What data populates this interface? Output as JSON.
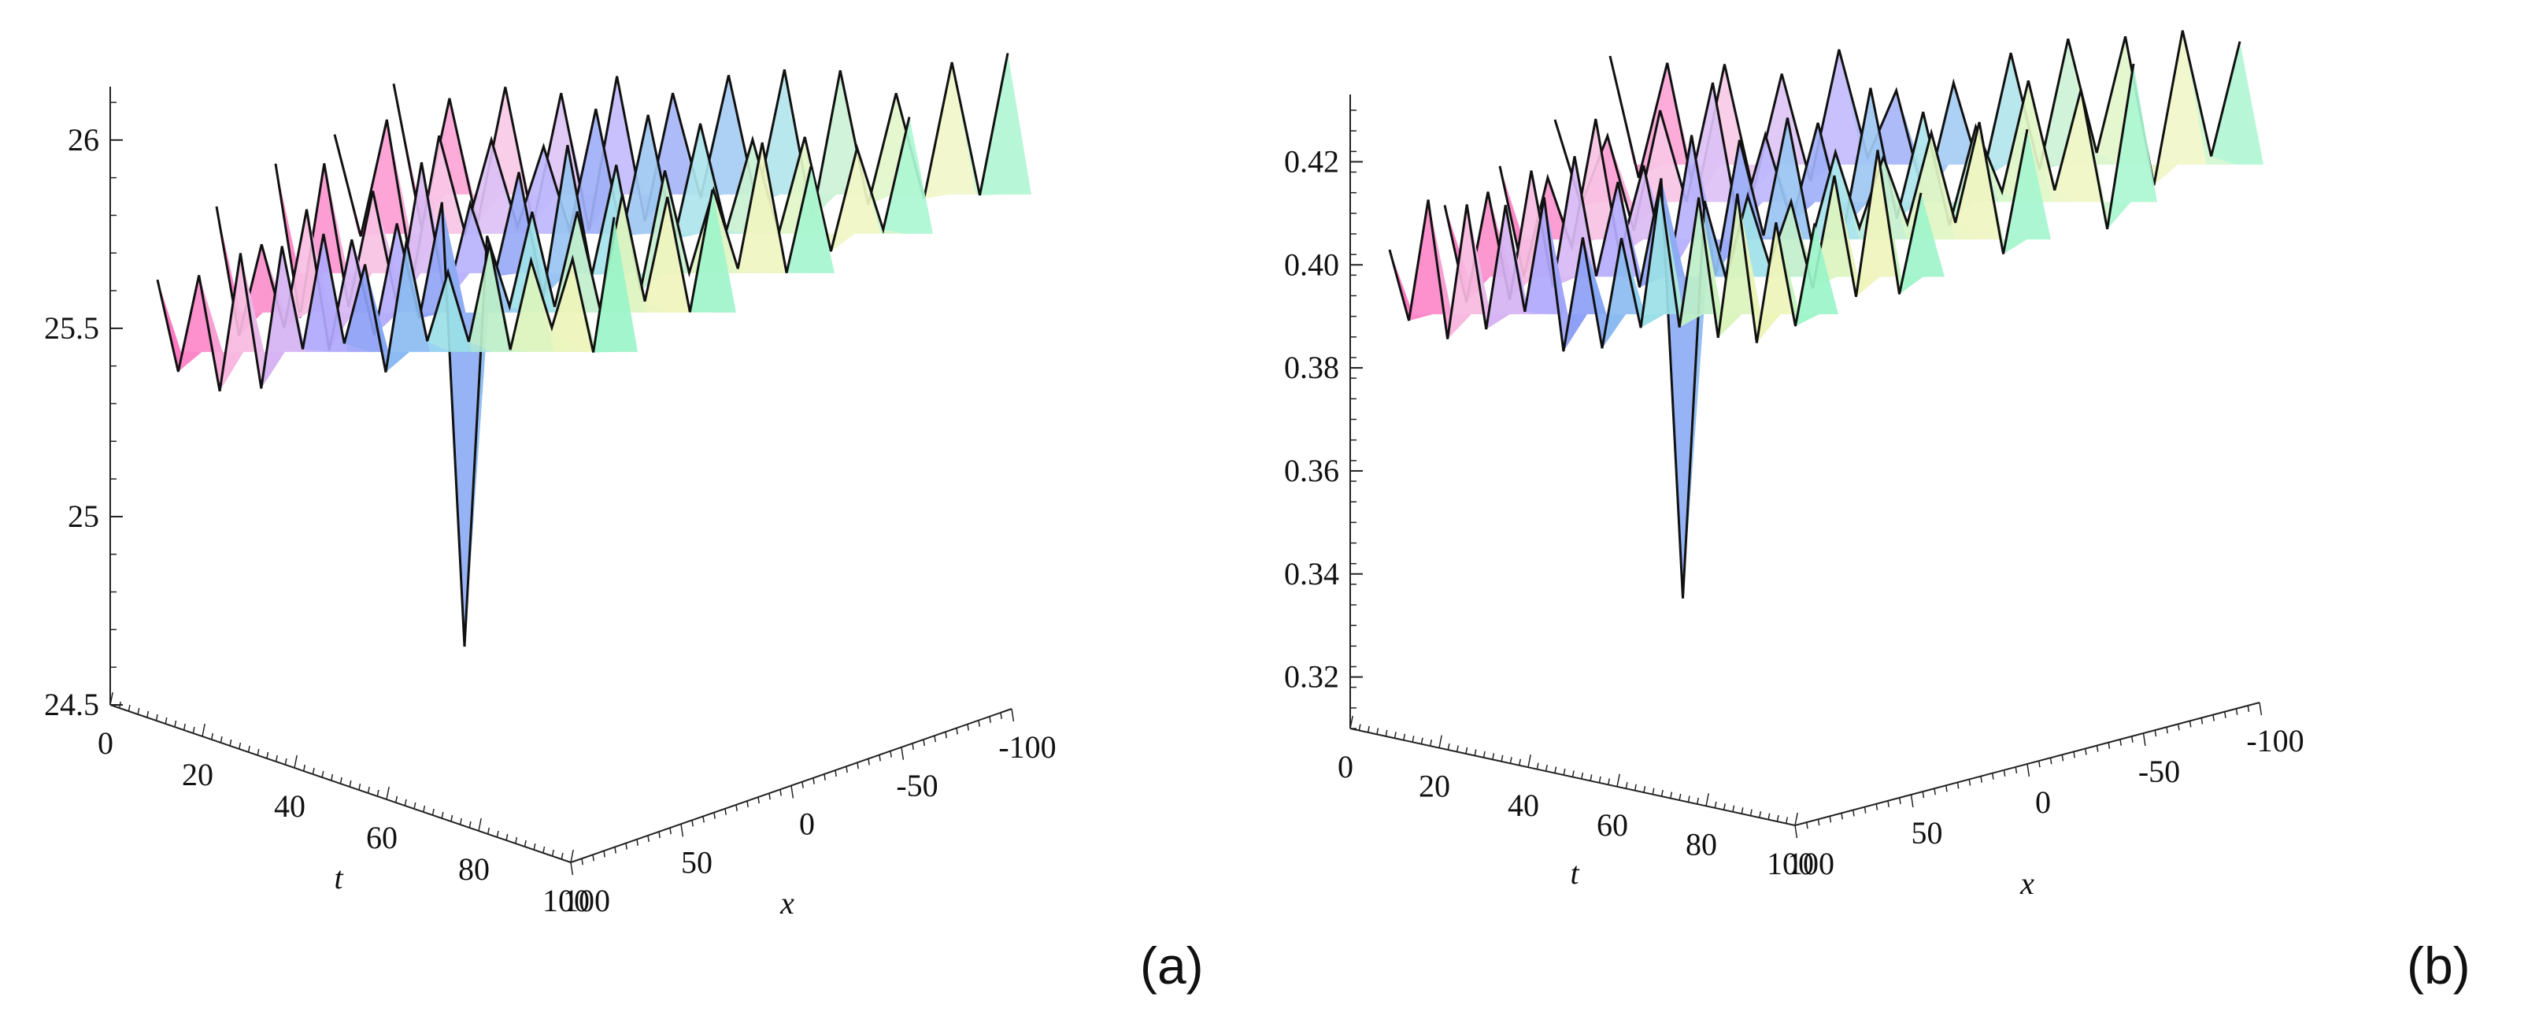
{
  "chart_data": [
    {
      "type": "surface",
      "panel_label": "(a)",
      "zlabel": "",
      "zlim": [
        24.5,
        26.1
      ],
      "z_ticks": [
        "24.5",
        "25",
        "25.5",
        "26"
      ],
      "t_label": "t",
      "t_range": [
        0,
        100
      ],
      "t_ticks": [
        "0",
        "20",
        "40",
        "60",
        "80",
        "100"
      ],
      "x_label": "x",
      "x_range": [
        -100,
        100
      ],
      "x_ticks": [
        "100",
        "50",
        "0",
        "-50",
        "-100"
      ],
      "surface_profile": {
        "baseline": 25.5,
        "ridge_count": 5,
        "peak_count_per_ridge": 11,
        "max_value": 26.12,
        "min_value": 24.55,
        "deep_trough_near": {
          "t": 62,
          "x": 10,
          "z": 24.55
        }
      },
      "colormap": [
        "#ff3fa8",
        "#f3a8d8",
        "#a890ff",
        "#5a7cf0",
        "#6fd0e8",
        "#b8f0a8",
        "#f0f0a0",
        "#40f0c0"
      ]
    },
    {
      "type": "surface",
      "panel_label": "(b)",
      "zlabel": "",
      "zlim": [
        0.31,
        0.43
      ],
      "z_ticks": [
        "0.32",
        "0.34",
        "0.36",
        "0.38",
        "0.40",
        "0.42"
      ],
      "t_label": "t",
      "t_range": [
        0,
        100
      ],
      "t_ticks": [
        "0",
        "20",
        "40",
        "60",
        "80",
        "100"
      ],
      "x_label": "x",
      "x_range": [
        -100,
        100
      ],
      "x_ticks": [
        "100",
        "50",
        "0",
        "-50",
        "-100"
      ],
      "surface_profile": {
        "baseline": 0.395,
        "ridge_count": 5,
        "peak_count_per_ridge": 11,
        "max_value": 0.435,
        "min_value": 0.328,
        "deep_trough_near": {
          "t": 70,
          "x": 20,
          "z": 0.328
        }
      },
      "colormap": [
        "#ff3fa8",
        "#f3a8d8",
        "#a890ff",
        "#5a7cf0",
        "#6fd0e8",
        "#b8f0a8",
        "#f0f0a0",
        "#40f0c0"
      ]
    }
  ]
}
